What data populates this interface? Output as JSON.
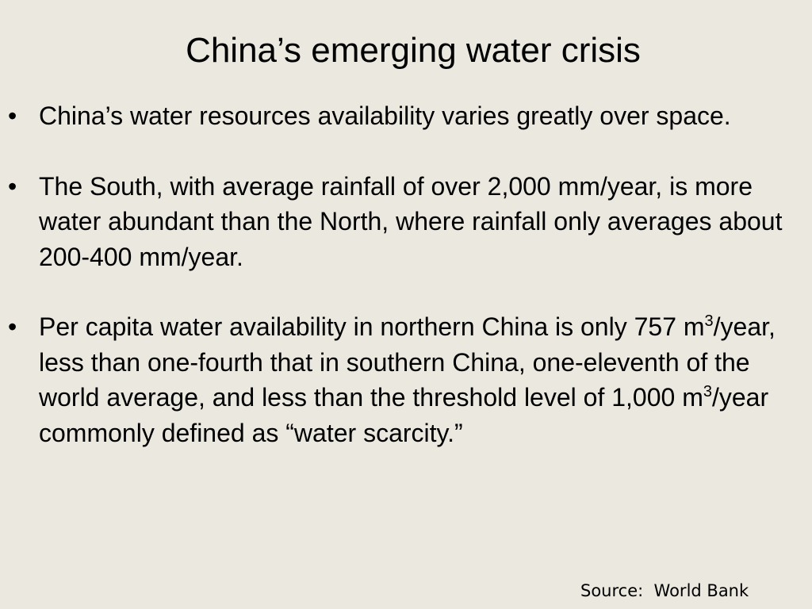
{
  "slide": {
    "title": "China’s emerging water crisis",
    "bullet_symbol": "•",
    "bullets": [
      {
        "segments": [
          {
            "text": "China’s water resources availability varies greatly over space."
          }
        ]
      },
      {
        "segments": [
          {
            "text": "The South, with average rainfall of over 2,000 mm/year, is more water abundant than the North, where rainfall only averages about 200-400 mm/year."
          }
        ]
      },
      {
        "segments": [
          {
            "text": "Per capita water availability in northern China is only 757 m"
          },
          {
            "text": "3",
            "sup": true
          },
          {
            "text": "/year, less than one-fourth that in southern China, one-eleventh of the world average, and less than the threshold level of 1,000 m"
          },
          {
            "text": "3",
            "sup": true
          },
          {
            "text": "/year commonly defined as “water scarcity.”"
          }
        ]
      }
    ],
    "source": "Source:  World Bank"
  }
}
